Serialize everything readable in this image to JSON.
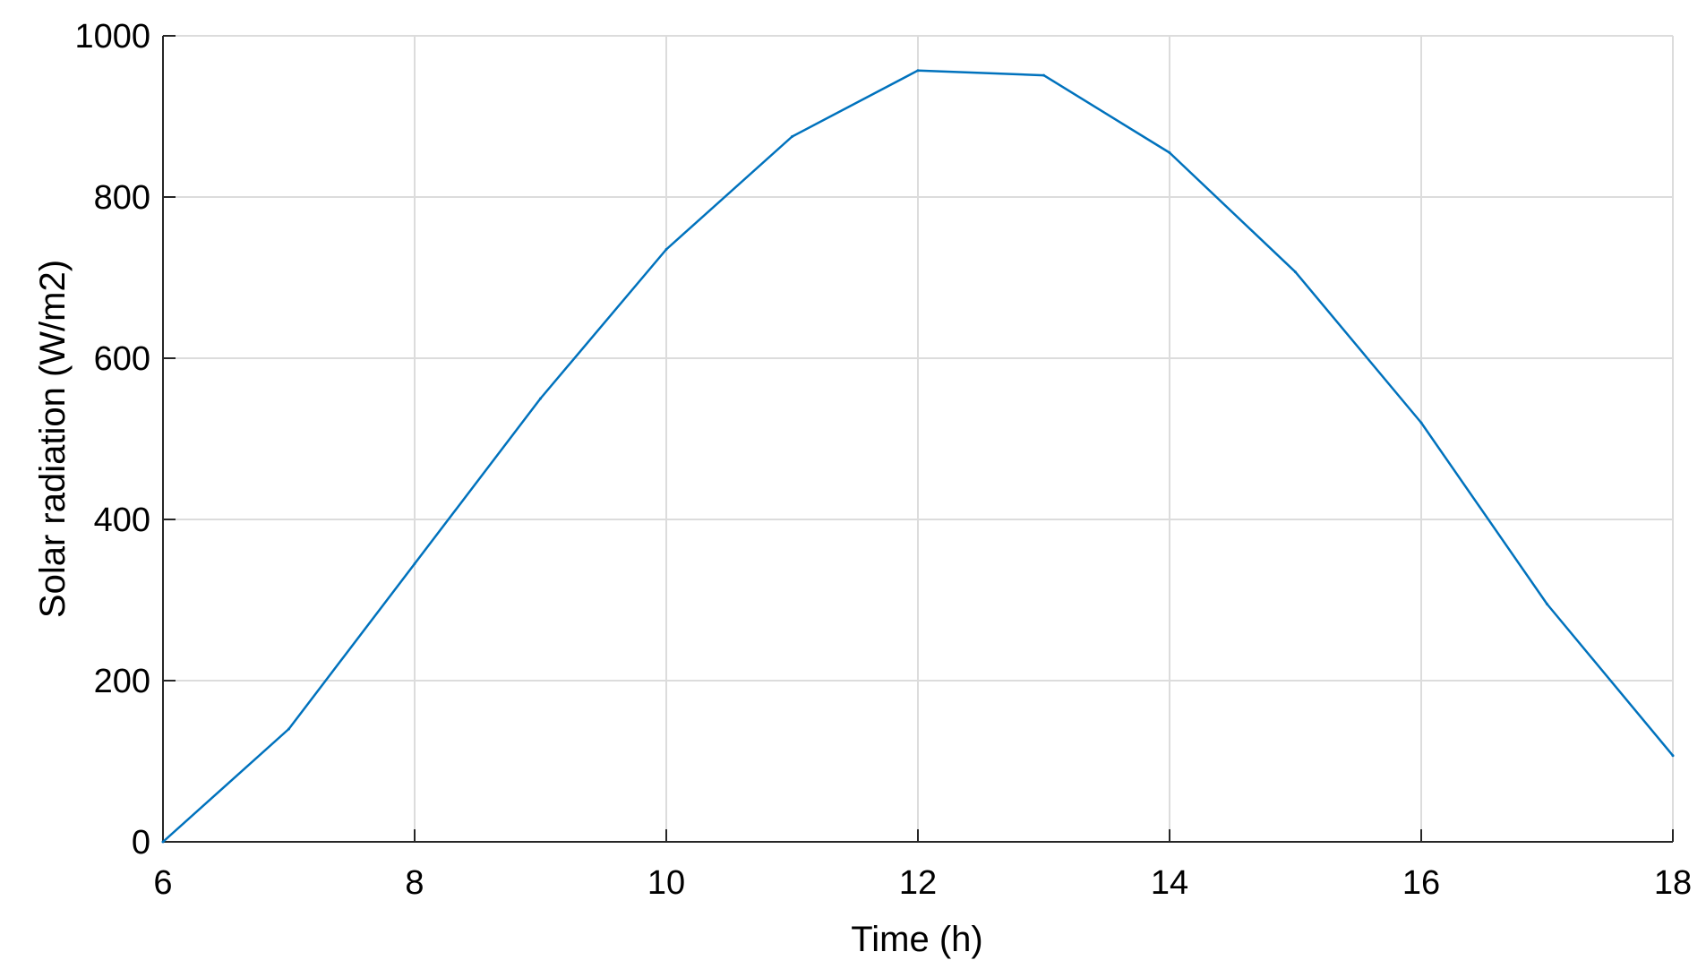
{
  "chart_data": {
    "type": "line",
    "title": "",
    "xlabel": "Time (h)",
    "ylabel": "Solar radiation (W/m2)",
    "xlim": [
      6,
      18
    ],
    "ylim": [
      0,
      1000
    ],
    "xticks": [
      "6",
      "8",
      "10",
      "12",
      "14",
      "16",
      "18"
    ],
    "yticks": [
      "0",
      "200",
      "400",
      "600",
      "800",
      "1000"
    ],
    "grid": true,
    "legend": "none",
    "line_color": "#0072BD",
    "series": [
      {
        "x": [
          6,
          7,
          8,
          9,
          10,
          11,
          12,
          13,
          14,
          15,
          16,
          17,
          18
        ],
        "y": [
          0,
          140,
          345,
          550,
          735,
          875,
          957,
          951,
          855,
          707,
          520,
          295,
          107
        ]
      }
    ]
  }
}
